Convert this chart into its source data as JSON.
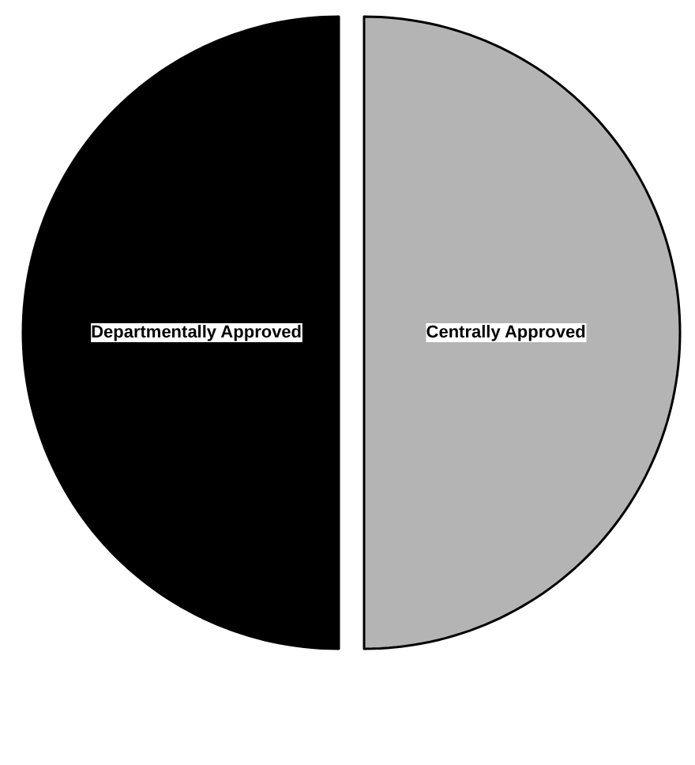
{
  "chart_data": {
    "type": "pie",
    "categories": [
      "Departmentally Approved",
      "Centrally Approved"
    ],
    "values": [
      50,
      50
    ],
    "colors": [
      "#000000",
      "#b4b4b4"
    ]
  }
}
